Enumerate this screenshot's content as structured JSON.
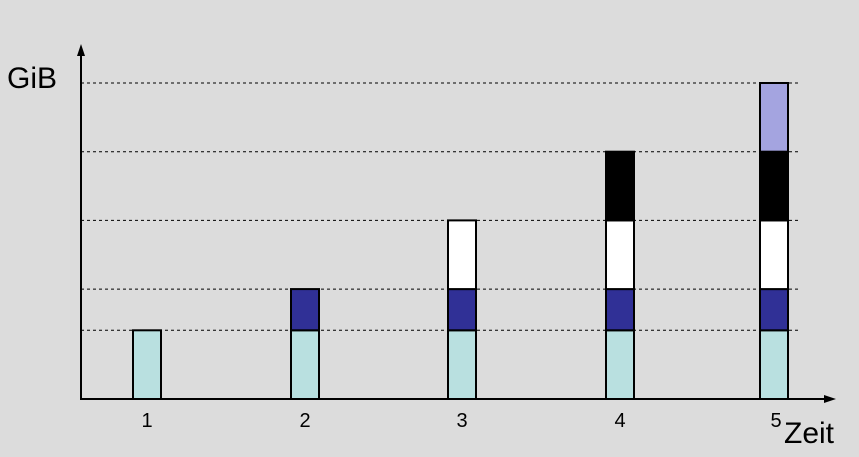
{
  "chart_data": {
    "type": "bar",
    "stacked": true,
    "title": "",
    "ylabel": "GiB",
    "xlabel": "Zeit",
    "categories": [
      "1",
      "2",
      "3",
      "4",
      "5"
    ],
    "ylim": [
      0,
      4.6
    ],
    "gridlines": [
      1.0,
      1.6,
      2.6,
      3.6,
      4.6
    ],
    "grid": "dashed horizontal",
    "legend": "none",
    "series": [
      {
        "color": "#b9e0e0",
        "values": [
          1.0,
          1.0,
          1.0,
          1.0,
          1.0
        ]
      },
      {
        "color": "#303096",
        "values": [
          0,
          0.6,
          0.6,
          0.6,
          0.6
        ]
      },
      {
        "color": "#ffffff",
        "values": [
          0,
          0,
          1.0,
          1.0,
          1.0
        ]
      },
      {
        "color": "#000000",
        "values": [
          0,
          0,
          0,
          1.0,
          1.0
        ]
      },
      {
        "color": "#a4a4e0",
        "values": [
          0,
          0,
          0,
          0,
          1.0
        ]
      }
    ]
  }
}
